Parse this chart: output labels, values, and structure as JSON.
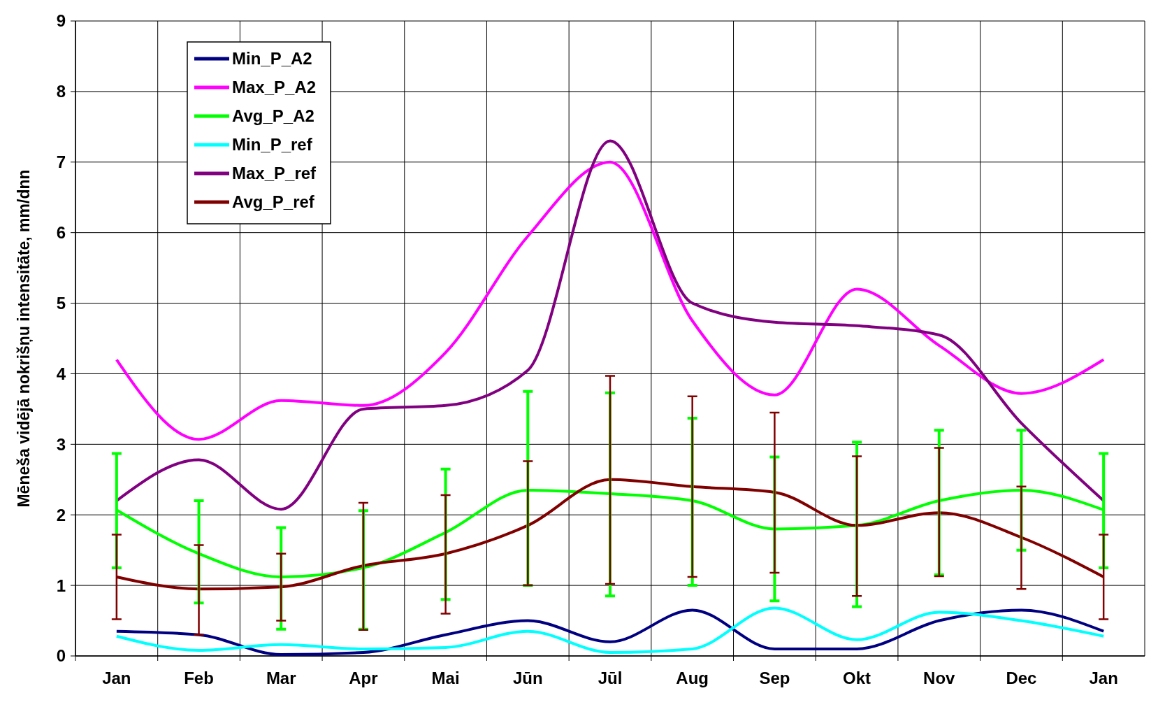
{
  "chart_data": {
    "type": "line",
    "ylabel": "Mēneša vidējā nokrišņu intensitāte, mm/dnn",
    "categories": [
      "Jan",
      "Feb",
      "Mar",
      "Apr",
      "Mai",
      "Jūn",
      "Jūl",
      "Aug",
      "Sep",
      "Okt",
      "Nov",
      "Dec",
      "Jan"
    ],
    "ylim": [
      0,
      9
    ],
    "yticks": [
      0,
      1,
      2,
      3,
      4,
      5,
      6,
      7,
      8,
      9
    ],
    "grid": true,
    "legend": "top left",
    "marker": "none",
    "line_style": "solid",
    "series": [
      {
        "name": "Min_P_A2",
        "color": "#000080",
        "values": [
          0.35,
          0.3,
          0.02,
          0.05,
          0.3,
          0.5,
          0.2,
          0.65,
          0.1,
          0.1,
          0.5,
          0.65,
          0.35
        ]
      },
      {
        "name": "Max_P_A2",
        "color": "#ff00ff",
        "values": [
          4.2,
          3.07,
          3.62,
          3.55,
          4.3,
          5.95,
          7.0,
          4.75,
          3.7,
          5.2,
          4.4,
          3.72,
          4.2
        ]
      },
      {
        "name": "Avg_P_A2",
        "color": "#00ff00",
        "values": [
          2.07,
          1.45,
          1.12,
          1.25,
          1.75,
          2.35,
          2.3,
          2.2,
          1.8,
          1.85,
          2.2,
          2.35,
          2.07
        ],
        "errors": [
          [
            1.25,
            2.87
          ],
          [
            0.75,
            2.2
          ],
          [
            0.38,
            1.82
          ],
          [
            0.38,
            2.06
          ],
          [
            0.8,
            2.65
          ],
          [
            1.0,
            3.75
          ],
          [
            0.85,
            3.73
          ],
          [
            1.0,
            3.37
          ],
          [
            0.78,
            2.82
          ],
          [
            0.7,
            3.03
          ],
          [
            1.15,
            3.2
          ],
          [
            1.5,
            3.2
          ],
          [
            1.25,
            2.87
          ]
        ]
      },
      {
        "name": "Min_P_ref",
        "color": "#00ffff",
        "values": [
          0.28,
          0.08,
          0.16,
          0.1,
          0.12,
          0.35,
          0.05,
          0.1,
          0.68,
          0.23,
          0.62,
          0.5,
          0.28
        ]
      },
      {
        "name": "Max_P_ref",
        "color": "#800080",
        "values": [
          2.2,
          2.78,
          2.08,
          3.5,
          3.55,
          4.05,
          7.3,
          5.0,
          4.73,
          4.68,
          4.55,
          3.3,
          2.2
        ]
      },
      {
        "name": "Avg_P_ref",
        "color": "#800000",
        "values": [
          1.12,
          0.95,
          0.98,
          1.28,
          1.45,
          1.85,
          2.5,
          2.4,
          2.32,
          1.85,
          2.03,
          1.68,
          1.12
        ],
        "errors": [
          [
            0.52,
            1.72
          ],
          [
            0.3,
            1.57
          ],
          [
            0.5,
            1.45
          ],
          [
            0.37,
            2.17
          ],
          [
            0.6,
            2.28
          ],
          [
            1.0,
            2.76
          ],
          [
            1.02,
            3.97
          ],
          [
            1.12,
            3.68
          ],
          [
            1.18,
            3.45
          ],
          [
            0.85,
            2.83
          ],
          [
            1.13,
            2.95
          ],
          [
            0.95,
            2.4
          ],
          [
            0.52,
            1.72
          ]
        ]
      }
    ]
  }
}
